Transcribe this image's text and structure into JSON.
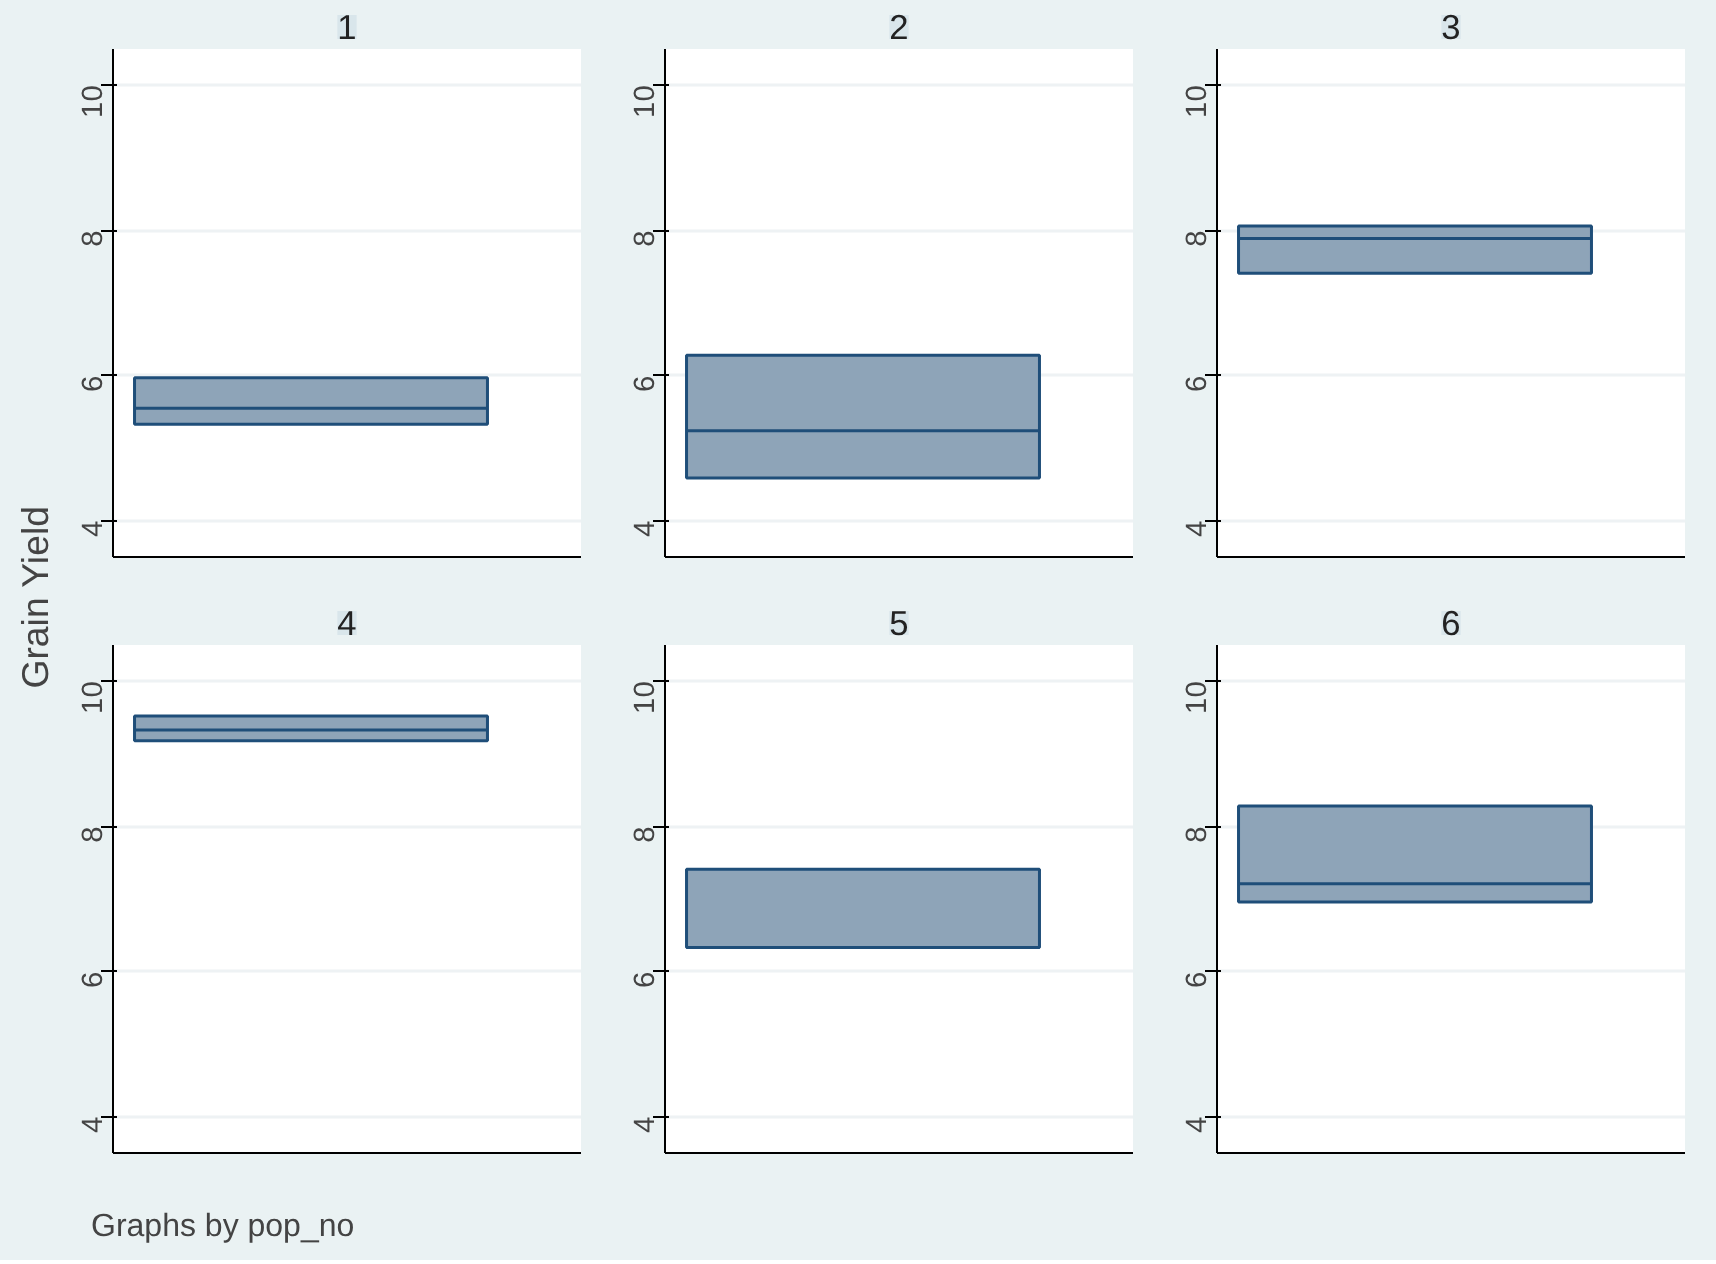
{
  "chart_data": [
    {
      "type": "box",
      "title": "1",
      "ylabel": "Grain Yield",
      "annotations": [
        "Graphs by pop_no"
      ],
      "categories": [
        null
      ],
      "boxes": [
        {
          "low": 5.33,
          "q1": 5.33,
          "median": 5.55,
          "q3": 5.97,
          "high": 5.97
        }
      ],
      "color": "#8ea4b8",
      "ylim": [
        3.5,
        10.5
      ],
      "yticks": [
        4,
        6,
        8,
        10
      ],
      "grid": "y"
    },
    {
      "type": "box",
      "title": "2",
      "categories": [
        null
      ],
      "boxes": [
        {
          "low": 4.59,
          "q1": 4.59,
          "median": 5.24,
          "q3": 6.28,
          "high": 6.28
        }
      ],
      "color": "#8ea4b8",
      "ylim": [
        3.5,
        10.5
      ],
      "yticks": [
        4,
        6,
        8,
        10
      ],
      "grid": "y"
    },
    {
      "type": "box",
      "title": "3",
      "categories": [
        null
      ],
      "boxes": [
        {
          "low": 7.41,
          "q1": 7.41,
          "median": 7.89,
          "q3": 8.06,
          "high": 8.06
        }
      ],
      "color": "#8ea4b8",
      "ylim": [
        3.5,
        10.5
      ],
      "yticks": [
        4,
        6,
        8,
        10
      ],
      "grid": "y"
    },
    {
      "type": "box",
      "title": "4",
      "categories": [
        null
      ],
      "boxes": [
        {
          "low": 9.18,
          "q1": 9.18,
          "median": 9.33,
          "q3": 9.52,
          "high": 9.52
        }
      ],
      "color": "#8ea4b8",
      "ylim": [
        3.5,
        10.5
      ],
      "yticks": [
        4,
        6,
        8,
        10
      ],
      "grid": "y"
    },
    {
      "type": "box",
      "title": "5",
      "categories": [
        null
      ],
      "boxes": [
        {
          "low": 6.33,
          "q1": 6.33,
          "median": 6.33,
          "q3": 7.41,
          "high": 7.41
        }
      ],
      "color": "#8ea4b8",
      "ylim": [
        3.5,
        10.5
      ],
      "yticks": [
        4,
        6,
        8,
        10
      ],
      "grid": "y"
    },
    {
      "type": "box",
      "title": "6",
      "categories": [
        null
      ],
      "boxes": [
        {
          "low": 6.96,
          "q1": 6.96,
          "median": 7.21,
          "q3": 8.28,
          "high": 8.28
        }
      ],
      "color": "#8ea4b8",
      "ylim": [
        3.5,
        10.5
      ],
      "yticks": [
        4,
        6,
        8,
        10
      ],
      "grid": "y"
    }
  ]
}
